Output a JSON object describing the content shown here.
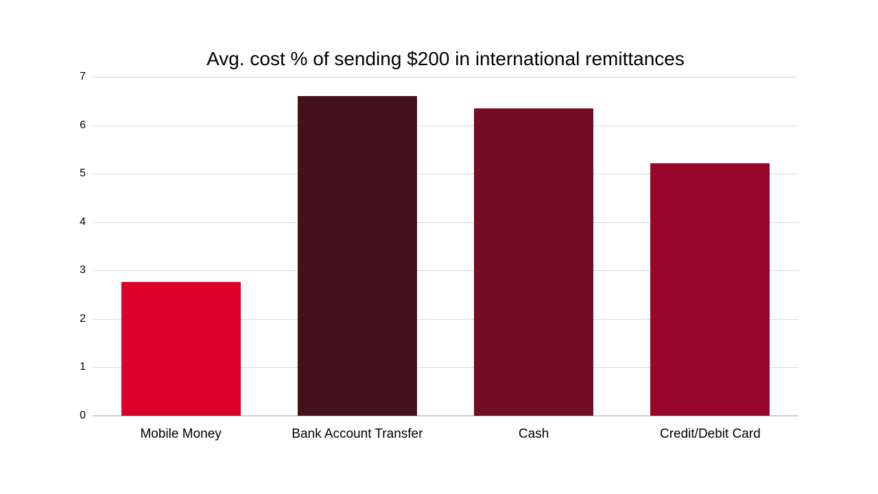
{
  "chart_data": {
    "type": "bar",
    "title": "Avg. cost % of sending $200 in international remittances",
    "categories": [
      "Mobile Money",
      "Bank Account Transfer",
      "Cash",
      "Credit/Debit Card"
    ],
    "values": [
      2.77,
      6.6,
      6.35,
      5.21
    ],
    "bar_colors": [
      "#dc0028",
      "#45111a",
      "#740d24",
      "#980629"
    ],
    "xlabel": "",
    "ylabel": "",
    "ylim": [
      0,
      7
    ],
    "ytick_step": 1,
    "ytick_labels": [
      "0",
      "1",
      "2",
      "3",
      "4",
      "5",
      "6",
      "7"
    ],
    "grid": "horizontal",
    "gridline_color": "#d9d9d9",
    "baseline_color": "#cfcfcf",
    "text_color": "#000000",
    "background_color": "#ffffff",
    "legend": "none"
  }
}
